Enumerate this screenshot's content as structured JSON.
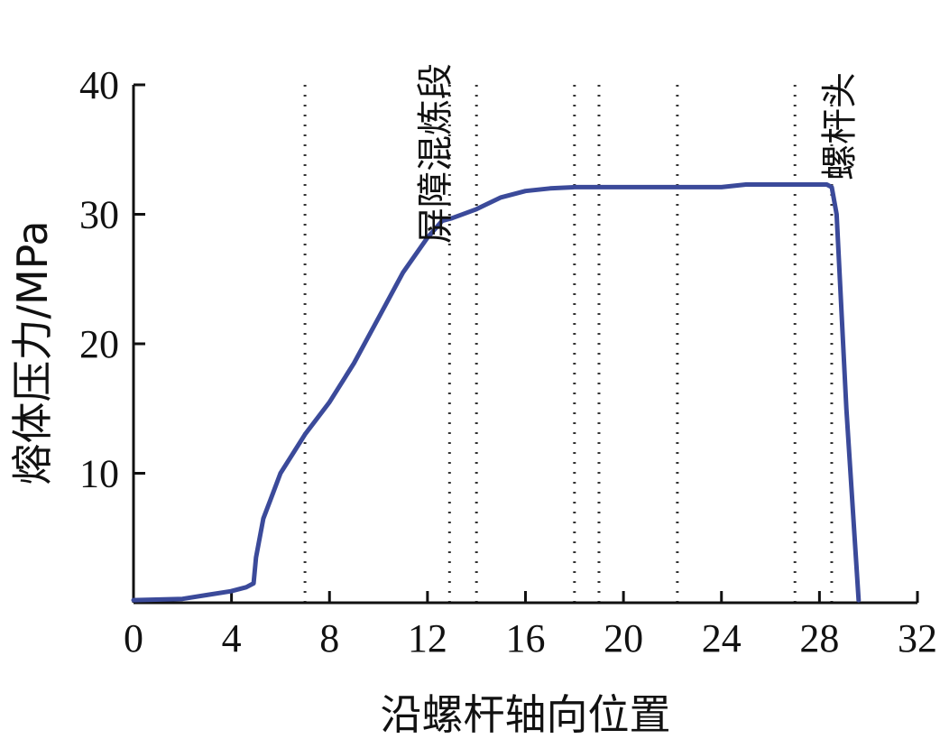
{
  "chart_data": {
    "type": "line",
    "title": "",
    "xlabel": "沿螺杆轴向位置",
    "ylabel": "熔体压力/MPa",
    "xlim": [
      0,
      32
    ],
    "ylim": [
      0,
      40
    ],
    "xticks": [
      0,
      4,
      8,
      12,
      16,
      20,
      24,
      28,
      32
    ],
    "yticks": [
      10,
      20,
      30,
      40
    ],
    "grid": false,
    "series_color": "#3b4a9a",
    "series": [
      {
        "x": [
          0,
          2,
          3,
          4,
          4.6,
          4.9,
          5.0,
          5.1,
          5.3,
          5.6,
          6.0,
          6.5,
          7.0,
          8.0,
          9.0,
          10.0,
          11.0,
          12.0,
          12.6,
          13.0,
          14.0,
          15.0,
          16.0,
          17.0,
          18.0,
          20.0,
          24.0,
          25.0,
          28.3,
          28.5,
          28.7,
          29.1,
          29.6
        ],
        "y": [
          0.2,
          0.3,
          0.6,
          0.9,
          1.2,
          1.5,
          3.5,
          4.5,
          6.5,
          8.0,
          10.0,
          11.5,
          13.0,
          15.5,
          18.5,
          22.0,
          25.5,
          28.2,
          29.5,
          29.7,
          30.4,
          31.3,
          31.8,
          32.0,
          32.1,
          32.1,
          32.1,
          32.3,
          32.3,
          32.1,
          30.0,
          15.0,
          0.2
        ]
      }
    ],
    "reference_lines_x": [
      7.0,
      12.9,
      14.0,
      18.0,
      19.0,
      22.2,
      27.0,
      28.5
    ],
    "annotations": [
      {
        "text": "屏障混炼段",
        "x": 12.3
      },
      {
        "text": "螺杆头",
        "x": 28.8
      }
    ]
  }
}
